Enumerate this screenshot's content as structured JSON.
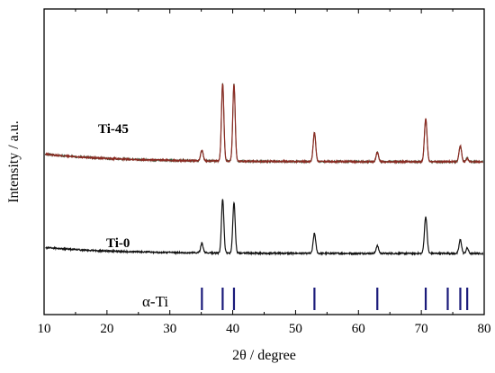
{
  "chart_data": {
    "type": "line",
    "xlabel": "2θ / degree",
    "ylabel": "Intensity / a.u.",
    "xlim": [
      10,
      80
    ],
    "xticks": [
      10,
      20,
      30,
      40,
      50,
      60,
      70,
      80
    ],
    "yticks": "none",
    "grid": false,
    "legend": "none",
    "series": [
      {
        "name": "Ti-45",
        "color": "#8b2a22",
        "overlay_color": "#2f4f2f",
        "offset": 0.5,
        "background": {
          "start": 0.025,
          "decay": 12,
          "floor": 0.0
        },
        "peaks": [
          {
            "x": 35.1,
            "height": 0.035,
            "width": 0.2
          },
          {
            "x": 38.4,
            "height": 0.255,
            "width": 0.19
          },
          {
            "x": 40.2,
            "height": 0.253,
            "width": 0.19
          },
          {
            "x": 53.0,
            "height": 0.095,
            "width": 0.2
          },
          {
            "x": 63.0,
            "height": 0.03,
            "width": 0.2
          },
          {
            "x": 70.7,
            "height": 0.14,
            "width": 0.21
          },
          {
            "x": 76.2,
            "height": 0.052,
            "width": 0.2
          },
          {
            "x": 77.3,
            "height": 0.011,
            "width": 0.18
          }
        ]
      },
      {
        "name": "Ti-0",
        "color": "#111111",
        "offset": 0.2,
        "background": {
          "start": 0.02,
          "decay": 11,
          "floor": 0.0
        },
        "peaks": [
          {
            "x": 35.1,
            "height": 0.03,
            "width": 0.2
          },
          {
            "x": 38.4,
            "height": 0.175,
            "width": 0.19
          },
          {
            "x": 40.2,
            "height": 0.165,
            "width": 0.19
          },
          {
            "x": 53.0,
            "height": 0.065,
            "width": 0.2
          },
          {
            "x": 63.0,
            "height": 0.025,
            "width": 0.2
          },
          {
            "x": 70.7,
            "height": 0.12,
            "width": 0.21
          },
          {
            "x": 76.2,
            "height": 0.045,
            "width": 0.2
          },
          {
            "x": 77.3,
            "height": 0.018,
            "width": 0.18
          }
        ]
      }
    ],
    "reference": {
      "name": "α-Ti",
      "color": "#1a1a7a",
      "positions": [
        35.1,
        38.4,
        40.2,
        53.0,
        63.0,
        70.7,
        74.2,
        76.2,
        77.3
      ]
    }
  }
}
